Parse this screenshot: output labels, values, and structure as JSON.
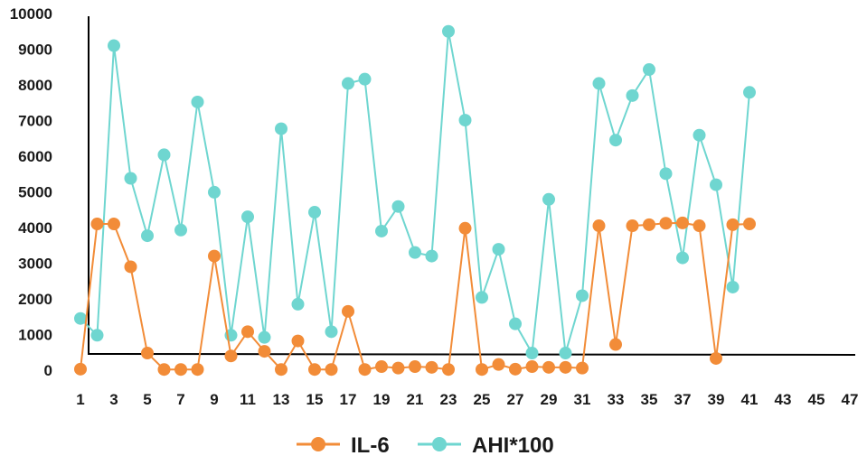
{
  "chart_data": {
    "type": "line",
    "title": "",
    "xlabel": "",
    "ylabel": "",
    "x": [
      1,
      2,
      3,
      4,
      5,
      6,
      7,
      8,
      9,
      10,
      11,
      12,
      13,
      14,
      15,
      16,
      17,
      18,
      19,
      20,
      21,
      22,
      23,
      24,
      25,
      26,
      27,
      28,
      29,
      30,
      31,
      32,
      33,
      34,
      35,
      36,
      37,
      38,
      39,
      40,
      41
    ],
    "x_tick_labels": [
      "1",
      "3",
      "5",
      "7",
      "9",
      "11",
      "13",
      "15",
      "17",
      "19",
      "21",
      "23",
      "25",
      "27",
      "29",
      "31",
      "33",
      "35",
      "37",
      "39",
      "41",
      "43",
      "45",
      "47"
    ],
    "x_ticks": [
      1,
      3,
      5,
      7,
      9,
      11,
      13,
      15,
      17,
      19,
      21,
      23,
      25,
      27,
      29,
      31,
      33,
      35,
      37,
      39,
      41,
      43,
      45,
      47
    ],
    "xlim": [
      1,
      47
    ],
    "y_tick_labels": [
      "0",
      "1000",
      "2000",
      "3000",
      "4000",
      "5000",
      "6000",
      "7000",
      "8000",
      "9000",
      "10000"
    ],
    "y_ticks": [
      0,
      1000,
      2000,
      3000,
      4000,
      5000,
      6000,
      7000,
      8000,
      9000,
      10000
    ],
    "ylim": [
      0,
      10000
    ],
    "grid": false,
    "legend_position": "bottom",
    "series": [
      {
        "name": "IL-6",
        "color": "#f28c38",
        "values": [
          30,
          4100,
          4100,
          2900,
          480,
          20,
          20,
          20,
          3200,
          400,
          1080,
          530,
          20,
          820,
          20,
          20,
          1650,
          20,
          100,
          60,
          100,
          80,
          20,
          3980,
          20,
          160,
          30,
          100,
          80,
          80,
          60,
          4050,
          720,
          4050,
          4080,
          4120,
          4130,
          4050,
          330,
          4080,
          4100
        ]
      },
      {
        "name": "AHI*100",
        "color": "#6fd6d0",
        "values": [
          1450,
          980,
          9100,
          5380,
          3770,
          6040,
          3930,
          7520,
          4990,
          980,
          4300,
          920,
          6770,
          1850,
          4430,
          1080,
          8040,
          8160,
          3900,
          4590,
          3300,
          3200,
          9500,
          7010,
          2040,
          3390,
          1300,
          480,
          4790,
          480,
          2090,
          8040,
          6450,
          7700,
          8430,
          5510,
          3150,
          6590,
          5200,
          2330,
          7790
        ]
      }
    ]
  }
}
